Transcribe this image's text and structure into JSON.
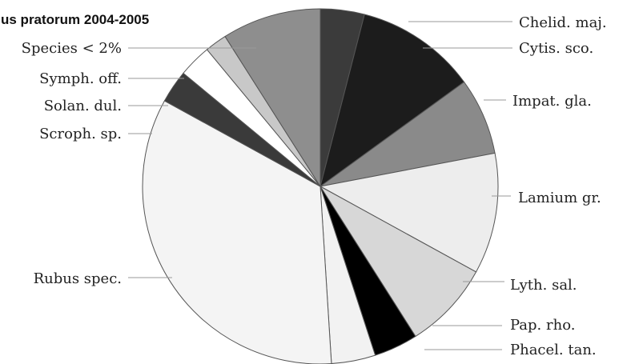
{
  "chart_data": {
    "type": "pie",
    "title": "us pratorum 2004-2005",
    "slices": [
      {
        "label": "Chelid. maj.",
        "value": 4,
        "color": "#3b3b3b"
      },
      {
        "label": "Cytis. sco.",
        "value": 11,
        "color": "#1c1c1c"
      },
      {
        "label": "Impat. gla.",
        "value": 7,
        "color": "#8a8a8a"
      },
      {
        "label": "Lamium gr.",
        "value": 11,
        "color": "#ededed"
      },
      {
        "label": "Lyth. sal.",
        "value": 8,
        "color": "#d7d7d7"
      },
      {
        "label": "Pap. rho.",
        "value": 4,
        "color": "#000000"
      },
      {
        "label": "Phacel. tan.",
        "value": 4,
        "color": "#f2f2f2"
      },
      {
        "label": "Rubus spec.",
        "value": 34,
        "color": "#f4f4f4"
      },
      {
        "label": "Scroph. sp.",
        "value": 3,
        "color": "#3a3a3a"
      },
      {
        "label": "Solan. dul.",
        "value": 3,
        "color": "#ffffff"
      },
      {
        "label": "Symph. off.",
        "value": 2,
        "color": "#c8c8c8"
      },
      {
        "label": "Species < 2%",
        "value": 9,
        "color": "#8e8e8e"
      }
    ]
  }
}
